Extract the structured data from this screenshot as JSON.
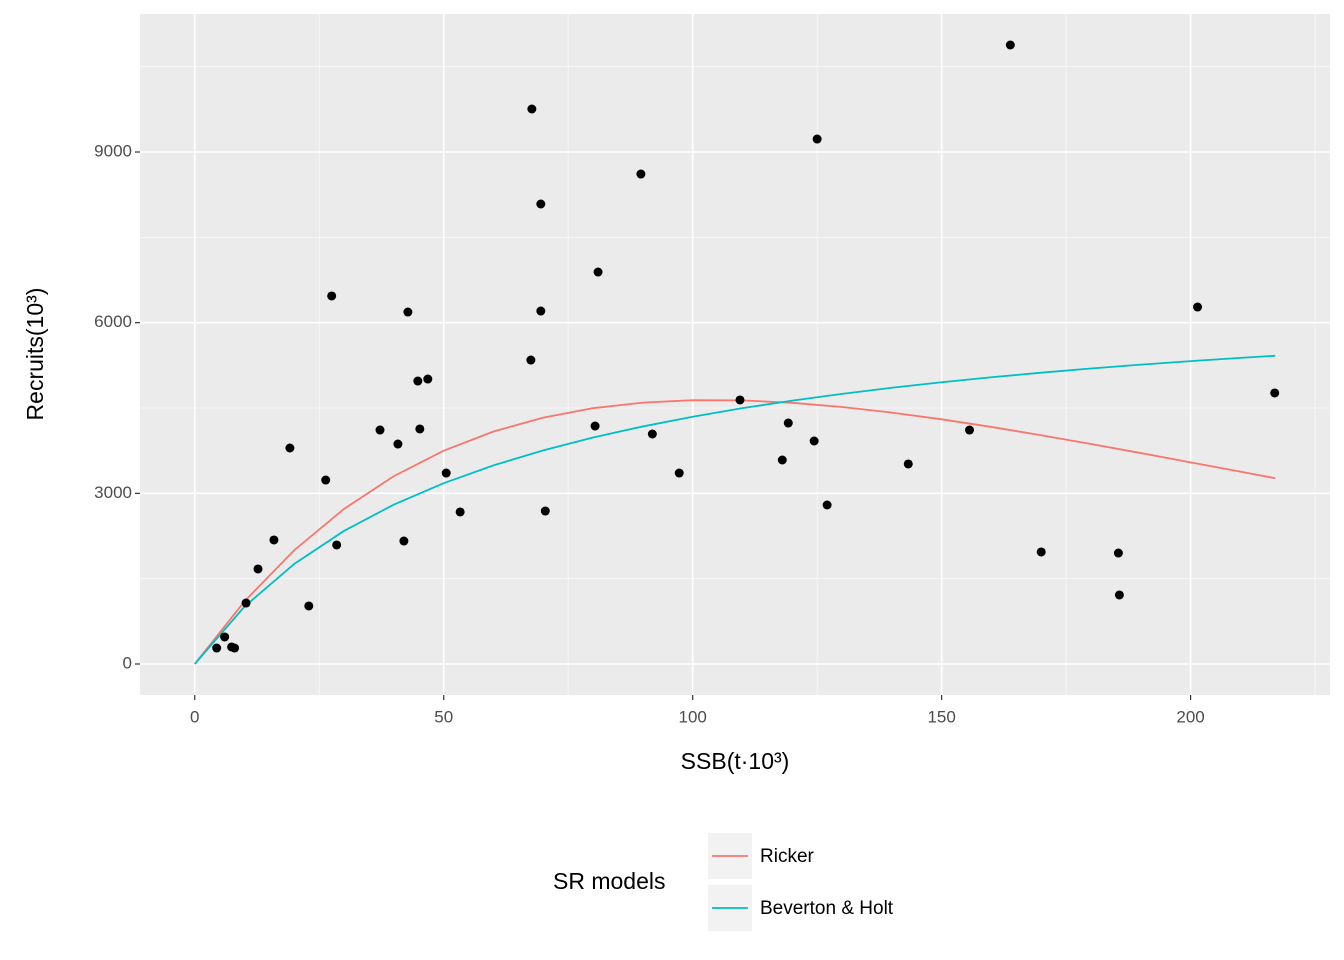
{
  "chart_data": {
    "type": "scatter",
    "xlabel": "SSB(t·10³)",
    "ylabel": "Recruits(10³)",
    "xlim": [
      -11,
      228
    ],
    "ylim": [
      -545,
      11426
    ],
    "xticks": [
      0,
      50,
      100,
      150,
      200
    ],
    "yticks": [
      0,
      3000,
      6000,
      9000
    ],
    "grid": true,
    "legend_title": "SR models",
    "legend_position": "bottom",
    "points": {
      "color": "#000000",
      "x": [
        4.4,
        6.0,
        7.4,
        8.0,
        10.3,
        12.7,
        15.9,
        19.1,
        22.9,
        26.3,
        27.5,
        28.5,
        37.2,
        40.8,
        42.0,
        42.8,
        44.8,
        45.2,
        46.8,
        50.5,
        53.3,
        67.5,
        67.7,
        69.5,
        69.5,
        70.4,
        80.4,
        81.0,
        89.6,
        91.9,
        97.3,
        109.5,
        118.0,
        119.2,
        124.4,
        125.0,
        127.0,
        143.3,
        155.6,
        163.8,
        170.0,
        185.5,
        185.7,
        201.4,
        216.9
      ],
      "values": [
        281,
        475,
        299,
        281,
        1072,
        1670,
        2180,
        3797,
        1020,
        3234,
        6469,
        2092,
        4113,
        3867,
        2162,
        6187,
        4974,
        4131,
        5009,
        3357,
        2672,
        5343,
        9756,
        8086,
        6205,
        2689,
        4183,
        6890,
        8613,
        4043,
        3357,
        4641,
        3586,
        4236,
        3920,
        9228,
        2795,
        3516,
        4113,
        10881,
        1969,
        1951,
        1213,
        6275,
        4764
      ]
    },
    "x": [
      0,
      10,
      20,
      30,
      40,
      50,
      60,
      70,
      80,
      90,
      100,
      110,
      120,
      130,
      140,
      150,
      160,
      170,
      180,
      190,
      200,
      210,
      217
    ],
    "series": [
      {
        "name": "Ricker",
        "color": "#F8766D",
        "values": [
          0,
          1102,
          2002,
          2727,
          3303,
          3750,
          4087,
          4331,
          4497,
          4595,
          4637,
          4634,
          4591,
          4518,
          4419,
          4301,
          4167,
          4021,
          3867,
          3708,
          3545,
          3382,
          3265
        ]
      },
      {
        "name": "Beverton & Holt",
        "color": "#00BFC4",
        "values": [
          0,
          1010,
          1761,
          2341,
          2803,
          3179,
          3492,
          3756,
          3981,
          4176,
          4347,
          4497,
          4630,
          4749,
          4856,
          4953,
          5040,
          5121,
          5194,
          5262,
          5324,
          5381,
          5419
        ]
      }
    ]
  }
}
